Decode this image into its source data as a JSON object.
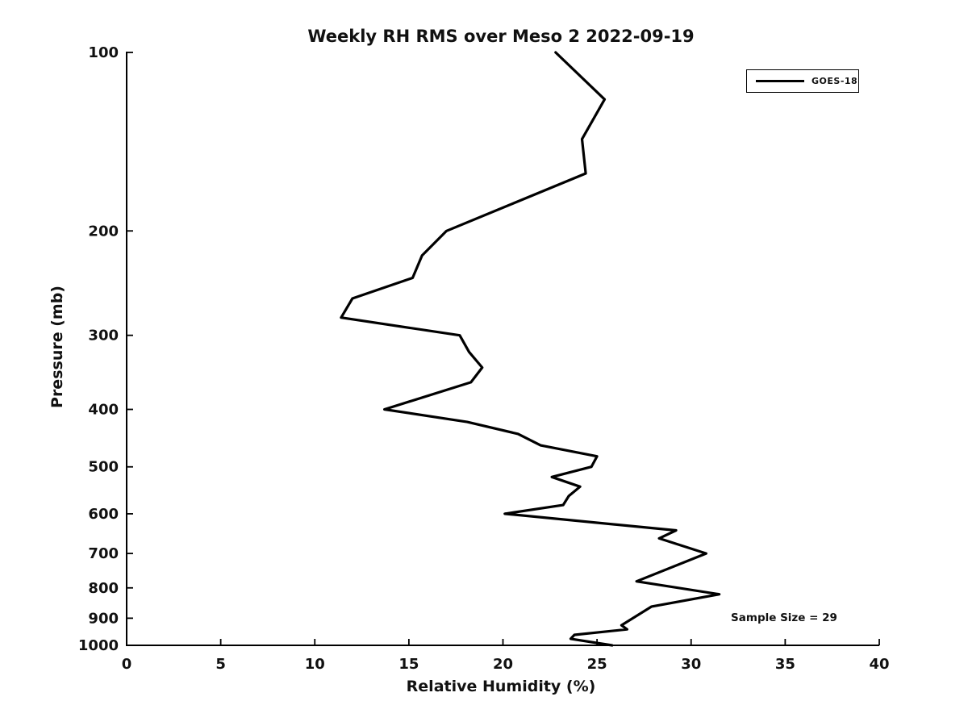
{
  "chart_data": {
    "type": "line",
    "title": "Weekly RH RMS over Meso 2 2022-09-19",
    "xlabel": "Relative Humidity (%)",
    "ylabel": "Pressure (mb)",
    "xlim": [
      0,
      40
    ],
    "xticks": [
      0,
      5,
      10,
      15,
      20,
      25,
      30,
      35,
      40
    ],
    "ylim": [
      100,
      1000
    ],
    "yscale": "log",
    "y_axis_inverted": true,
    "yticks": [
      100,
      200,
      300,
      400,
      500,
      600,
      700,
      800,
      900,
      1000
    ],
    "grid": false,
    "legend": {
      "position": "top-right",
      "entries": [
        "GOES-18"
      ]
    },
    "annotation": "Sample Size = 29",
    "series": [
      {
        "name": "GOES-18",
        "color": "#000000",
        "x_rh_percent": [
          22.8,
          25.4,
          24.2,
          24.4,
          17.0,
          15.7,
          15.2,
          12.0,
          11.4,
          17.7,
          18.2,
          18.9,
          18.3,
          13.7,
          18.1,
          20.8,
          22.0,
          25.0,
          24.7,
          22.6,
          24.1,
          23.5,
          23.2,
          20.1,
          29.2,
          28.3,
          30.8,
          27.1,
          31.5,
          27.9,
          26.3,
          26.6,
          23.8,
          23.6,
          25.8
        ],
        "y_pressure_mb": [
          100,
          120,
          140,
          160,
          200,
          220,
          240,
          260,
          280,
          300,
          320,
          340,
          360,
          400,
          420,
          440,
          460,
          480,
          500,
          520,
          540,
          560,
          580,
          600,
          640,
          660,
          700,
          780,
          820,
          860,
          925,
          940,
          960,
          975,
          1000
        ]
      }
    ]
  }
}
